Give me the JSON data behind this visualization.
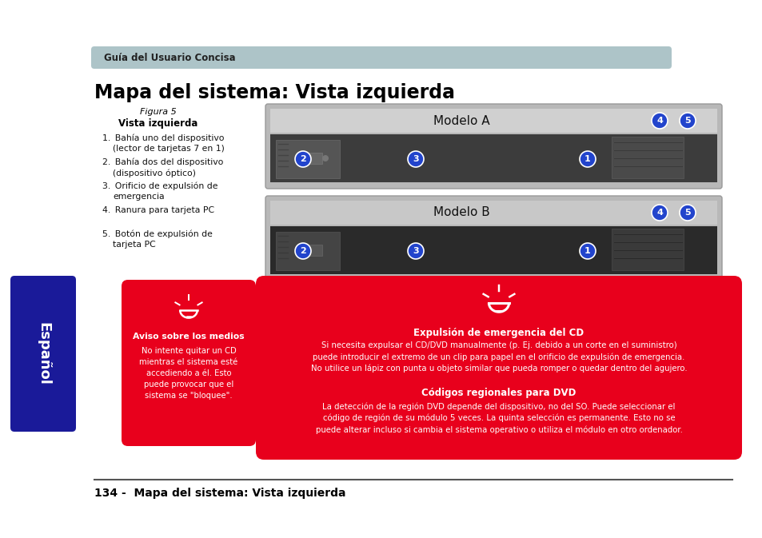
{
  "bg_color": "#ffffff",
  "header_bar_color": "#adc4c8",
  "header_text": "Guía del Usuario Concisa",
  "main_title": "Mapa del sistema: Vista izquierda",
  "fig_caption_italic": "Figura 5",
  "fig_caption_bold": "Vista izquierda",
  "list_items": [
    [
      "Bahía uno del dispositivo",
      "(lector de tarjetas 7 en 1)"
    ],
    [
      "Bahía dos del dispositivo",
      "(dispositivo óptico)"
    ],
    [
      "Orificio de expulsión de",
      "emergencia"
    ],
    [
      "Ranura para tarjeta PC",
      ""
    ],
    [
      "Botón de expulsión de",
      "tarjeta PC"
    ]
  ],
  "modelo_a_label": "Modelo A",
  "modelo_b_label": "Modelo B",
  "sidebar_color": "#1a1a99",
  "sidebar_text": "Español",
  "red_box_color": "#e8001c",
  "small_red_box_title": "Aviso sobre los medios",
  "small_red_box_text": "No intente quitar un CD\nmientras el sistema esté\naccediendo a él. Esto\npuede provocar que el\nsistema se \"bloquee\".",
  "large_red_box_title1": "Expulsión de emergencia del CD",
  "large_red_box_text1": "Si necesita expulsar el CD/DVD manualmente (p. Ej. debido a un corte en el suministro)\npuede introducir el extremo de un clip para papel en el orificio de expulsión de emergencia.\nNo utilice un lápiz con punta u objeto similar que pueda romper o quedar dentro del agujero.",
  "large_red_box_title2": "Códigos regionales para DVD",
  "large_red_box_text2": "La detección de la región DVD depende del dispositivo, no del SO. Puede seleccionar el\ncódigo de región de su módulo 5 veces. La quinta selección es permanente. Esto no se\npuede alterar incluso si cambia el sistema operativo o utiliza el módulo en otro ordenador.",
  "footer_text": "134 -  Mapa del sistema: Vista izquierda",
  "circle_color": "#2244cc",
  "circle_text_color": "#ffffff"
}
